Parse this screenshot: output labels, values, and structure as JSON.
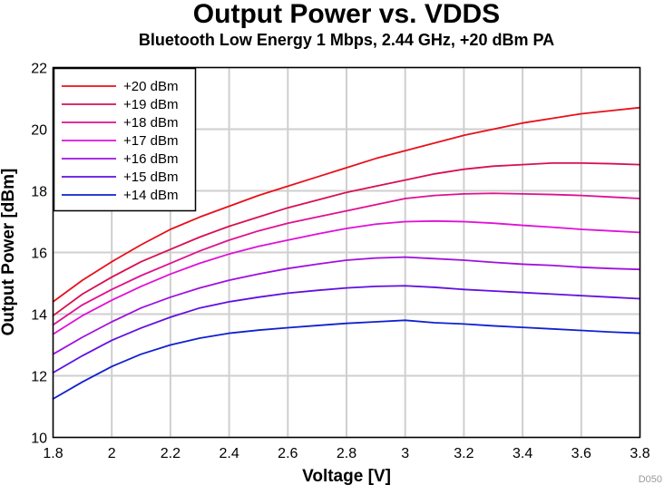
{
  "chart_data": {
    "type": "line",
    "title": "Output Power vs. VDDS",
    "subtitle": "Bluetooth Low Energy 1 Mbps, 2.44 GHz, +20 dBm PA",
    "xlabel": "Voltage [V]",
    "ylabel": "Output Power [dBm]",
    "xlim": [
      1.8,
      3.8
    ],
    "ylim": [
      10,
      22
    ],
    "x_ticks": [
      "1.8",
      "2",
      "2.2",
      "2.4",
      "2.6",
      "2.8",
      "3",
      "3.2",
      "3.4",
      "3.6",
      "3.8"
    ],
    "y_ticks": [
      "10",
      "12",
      "14",
      "16",
      "18",
      "20",
      "22"
    ],
    "grid": true,
    "legend_position": "top-left",
    "figure_id": "D050",
    "x": [
      1.8,
      1.9,
      2.0,
      2.1,
      2.2,
      2.3,
      2.4,
      2.5,
      2.6,
      2.7,
      2.8,
      2.9,
      3.0,
      3.1,
      3.2,
      3.3,
      3.4,
      3.5,
      3.6,
      3.7,
      3.8
    ],
    "series": [
      {
        "name": "+20 dBm",
        "color": "#e8101a",
        "values": [
          14.4,
          15.1,
          15.7,
          16.25,
          16.75,
          17.15,
          17.5,
          17.85,
          18.15,
          18.45,
          18.75,
          19.05,
          19.3,
          19.55,
          19.8,
          20.0,
          20.2,
          20.35,
          20.5,
          20.6,
          20.7
        ]
      },
      {
        "name": "+19 dBm",
        "color": "#d81050",
        "values": [
          13.95,
          14.65,
          15.2,
          15.7,
          16.1,
          16.5,
          16.85,
          17.15,
          17.45,
          17.7,
          17.95,
          18.15,
          18.35,
          18.55,
          18.7,
          18.8,
          18.85,
          18.9,
          18.9,
          18.88,
          18.85
        ]
      },
      {
        "name": "+18 dBm",
        "color": "#e01090",
        "values": [
          13.65,
          14.3,
          14.8,
          15.25,
          15.65,
          16.05,
          16.4,
          16.7,
          16.95,
          17.15,
          17.35,
          17.55,
          17.75,
          17.85,
          17.9,
          17.92,
          17.9,
          17.88,
          17.85,
          17.8,
          17.75
        ]
      },
      {
        "name": "+17 dBm",
        "color": "#e010d8",
        "values": [
          13.35,
          13.95,
          14.45,
          14.9,
          15.3,
          15.65,
          15.95,
          16.2,
          16.4,
          16.6,
          16.78,
          16.92,
          17.0,
          17.02,
          17.0,
          16.95,
          16.88,
          16.82,
          16.75,
          16.7,
          16.65
        ]
      },
      {
        "name": "+16 dBm",
        "color": "#a010e0",
        "values": [
          12.7,
          13.25,
          13.75,
          14.2,
          14.55,
          14.85,
          15.1,
          15.3,
          15.48,
          15.62,
          15.75,
          15.82,
          15.85,
          15.8,
          15.75,
          15.68,
          15.62,
          15.58,
          15.52,
          15.48,
          15.45
        ]
      },
      {
        "name": "+15 dBm",
        "color": "#6010e0",
        "values": [
          12.1,
          12.65,
          13.15,
          13.55,
          13.9,
          14.2,
          14.4,
          14.55,
          14.68,
          14.77,
          14.85,
          14.9,
          14.92,
          14.87,
          14.8,
          14.75,
          14.7,
          14.65,
          14.6,
          14.55,
          14.5
        ]
      },
      {
        "name": "+14 dBm",
        "color": "#1020d0",
        "values": [
          11.25,
          11.8,
          12.3,
          12.7,
          13.0,
          13.22,
          13.38,
          13.48,
          13.56,
          13.63,
          13.7,
          13.75,
          13.8,
          13.72,
          13.68,
          13.62,
          13.57,
          13.52,
          13.47,
          13.42,
          13.38
        ]
      }
    ]
  }
}
